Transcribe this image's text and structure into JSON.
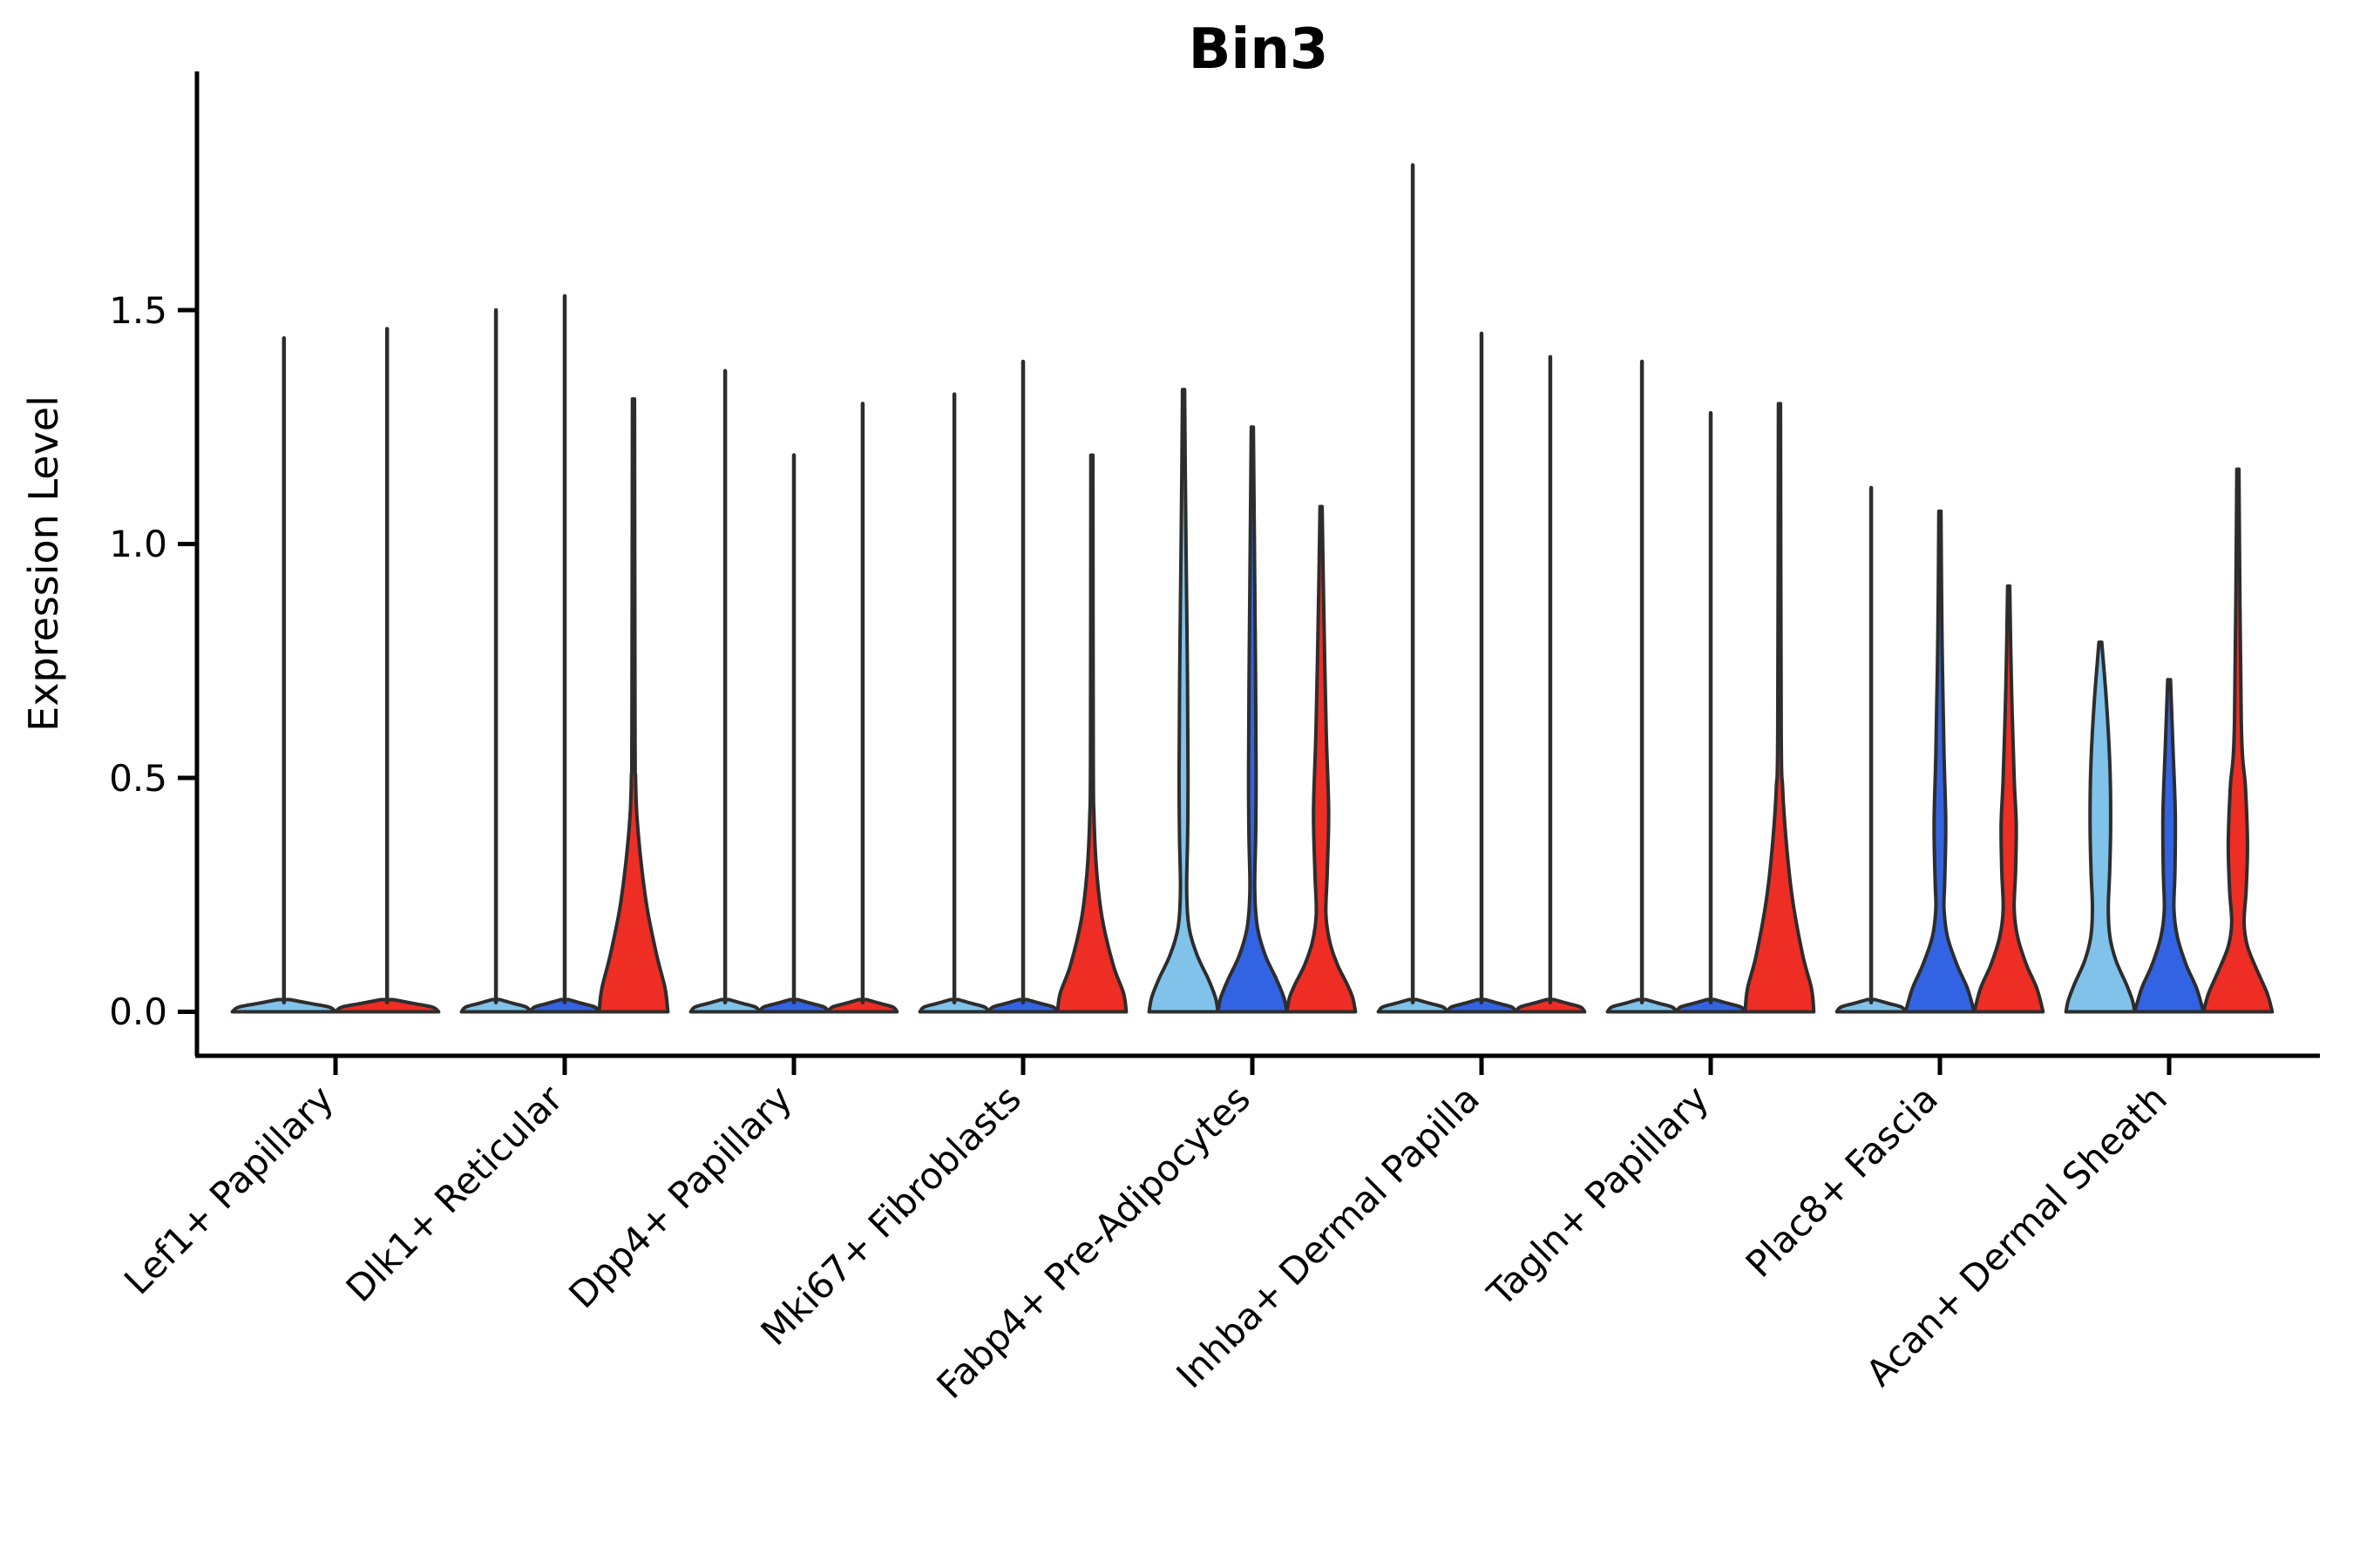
{
  "figure": {
    "title": "Bin3",
    "y_axis_label": "Expression Level"
  },
  "chart_data": {
    "type": "violin",
    "title": "Bin3",
    "ylabel": "Expression Level",
    "xlabel": "",
    "grid": false,
    "legend_position": "none",
    "ylim": [
      -0.09,
      2.0
    ],
    "yticks": [
      0.0,
      0.5,
      1.0,
      1.5
    ],
    "ytick_labels": [
      "0.0",
      "0.5",
      "1.0",
      "1.5"
    ],
    "categories": [
      "Lef1+ Papillary",
      "Dlk1+ Reticular",
      "Dpp4+ Papillary",
      "Mki67+ Fibroblasts",
      "Fabp4+ Pre-Adipocytes",
      "Inhba+ Dermal Papilla",
      "Tagln+ Papillary",
      "Plac8+ Fascia",
      "Acan+ Dermal Sheath"
    ],
    "series_colors": {
      "light": "#80C2E9",
      "dark": "#3263E3",
      "red": "#EE2D24"
    },
    "outline_color": "#2D2D2D",
    "axis_color": "#000000",
    "groups": [
      {
        "category": "Lef1+ Papillary",
        "violins": [
          {
            "split": "light",
            "max": 1.44,
            "shape": "thin"
          },
          {
            "split": "red",
            "max": 1.46,
            "shape": "thin"
          }
        ]
      },
      {
        "category": "Dlk1+ Reticular",
        "violins": [
          {
            "split": "light",
            "max": 1.5,
            "shape": "thin"
          },
          {
            "split": "dark",
            "max": 1.53,
            "shape": "thin"
          },
          {
            "split": "red",
            "max": 1.31,
            "shape": "bulge",
            "profile": [
              [
                1.31,
                0.03
              ],
              [
                0.6,
                0.045
              ],
              [
                0.5,
                0.06
              ],
              [
                0.42,
                0.1
              ],
              [
                0.32,
                0.22
              ],
              [
                0.22,
                0.4
              ],
              [
                0.12,
                0.68
              ],
              [
                0.05,
                0.92
              ],
              [
                0,
                1
              ]
            ]
          }
        ]
      },
      {
        "category": "Dpp4+ Papillary",
        "violins": [
          {
            "split": "light",
            "max": 1.37,
            "shape": "thin"
          },
          {
            "split": "dark",
            "max": 1.19,
            "shape": "thin"
          },
          {
            "split": "red",
            "max": 1.3,
            "shape": "thin"
          }
        ]
      },
      {
        "category": "Mki67+ Fibroblasts",
        "violins": [
          {
            "split": "light",
            "max": 1.32,
            "shape": "thin"
          },
          {
            "split": "dark",
            "max": 1.39,
            "shape": "thin"
          },
          {
            "split": "red",
            "max": 1.19,
            "shape": "bulge",
            "profile": [
              [
                1.19,
                0.03
              ],
              [
                0.55,
                0.04
              ],
              [
                0.42,
                0.06
              ],
              [
                0.3,
                0.14
              ],
              [
                0.2,
                0.3
              ],
              [
                0.1,
                0.62
              ],
              [
                0.04,
                0.92
              ],
              [
                0,
                1
              ]
            ]
          }
        ]
      },
      {
        "category": "Fabp4+ Pre-Adipocytes",
        "violins": [
          {
            "split": "light",
            "max": 1.33,
            "shape": "bulge",
            "profile": [
              [
                1.33,
                0.03
              ],
              [
                1.0,
                0.07
              ],
              [
                0.75,
                0.11
              ],
              [
                0.52,
                0.13
              ],
              [
                0.38,
                0.12
              ],
              [
                0.26,
                0.09
              ],
              [
                0.18,
                0.16
              ],
              [
                0.12,
                0.4
              ],
              [
                0.07,
                0.72
              ],
              [
                0.03,
                0.93
              ],
              [
                0,
                1
              ]
            ]
          },
          {
            "split": "dark",
            "max": 1.25,
            "shape": "bulge",
            "profile": [
              [
                1.25,
                0.03
              ],
              [
                1.0,
                0.06
              ],
              [
                0.75,
                0.09
              ],
              [
                0.52,
                0.11
              ],
              [
                0.38,
                0.1
              ],
              [
                0.26,
                0.07
              ],
              [
                0.18,
                0.15
              ],
              [
                0.12,
                0.38
              ],
              [
                0.07,
                0.7
              ],
              [
                0.03,
                0.92
              ],
              [
                0,
                1
              ]
            ]
          },
          {
            "split": "red",
            "max": 1.08,
            "shape": "bulge",
            "profile": [
              [
                1.08,
                0.03
              ],
              [
                0.85,
                0.08
              ],
              [
                0.6,
                0.15
              ],
              [
                0.43,
                0.22
              ],
              [
                0.3,
                0.18
              ],
              [
                0.21,
                0.14
              ],
              [
                0.15,
                0.25
              ],
              [
                0.1,
                0.48
              ],
              [
                0.06,
                0.75
              ],
              [
                0.03,
                0.92
              ],
              [
                0,
                1
              ]
            ]
          }
        ]
      },
      {
        "category": "Inhba+ Dermal Papilla",
        "violins": [
          {
            "split": "light",
            "max": 1.81,
            "shape": "thin"
          },
          {
            "split": "dark",
            "max": 1.45,
            "shape": "thin"
          },
          {
            "split": "red",
            "max": 1.4,
            "shape": "thin"
          }
        ]
      },
      {
        "category": "Tagln+ Papillary",
        "violins": [
          {
            "split": "light",
            "max": 1.39,
            "shape": "thin"
          },
          {
            "split": "dark",
            "max": 1.28,
            "shape": "thin"
          },
          {
            "split": "red",
            "max": 1.3,
            "shape": "bulge",
            "profile": [
              [
                1.3,
                0.03
              ],
              [
                0.6,
                0.05
              ],
              [
                0.48,
                0.09
              ],
              [
                0.36,
                0.2
              ],
              [
                0.24,
                0.38
              ],
              [
                0.12,
                0.68
              ],
              [
                0.05,
                0.93
              ],
              [
                0,
                1
              ]
            ]
          }
        ]
      },
      {
        "category": "Plac8+ Fascia",
        "violins": [
          {
            "split": "light",
            "max": 1.12,
            "shape": "thin"
          },
          {
            "split": "dark",
            "max": 1.07,
            "shape": "bulge",
            "profile": [
              [
                1.07,
                0.03
              ],
              [
                0.8,
                0.06
              ],
              [
                0.55,
                0.12
              ],
              [
                0.4,
                0.17
              ],
              [
                0.28,
                0.14
              ],
              [
                0.22,
                0.12
              ],
              [
                0.16,
                0.22
              ],
              [
                0.1,
                0.5
              ],
              [
                0.05,
                0.8
              ],
              [
                0,
                1
              ]
            ]
          },
          {
            "split": "red",
            "max": 0.91,
            "shape": "bulge",
            "profile": [
              [
                0.91,
                0.03
              ],
              [
                0.7,
                0.08
              ],
              [
                0.5,
                0.16
              ],
              [
                0.4,
                0.22
              ],
              [
                0.3,
                0.2
              ],
              [
                0.22,
                0.16
              ],
              [
                0.16,
                0.26
              ],
              [
                0.1,
                0.52
              ],
              [
                0.05,
                0.82
              ],
              [
                0,
                1
              ]
            ]
          }
        ]
      },
      {
        "category": "Acan+ Dermal Sheath",
        "violins": [
          {
            "split": "light",
            "max": 0.79,
            "shape": "bulge",
            "profile": [
              [
                0.79,
                0.04
              ],
              [
                0.66,
                0.18
              ],
              [
                0.52,
                0.28
              ],
              [
                0.4,
                0.3
              ],
              [
                0.3,
                0.27
              ],
              [
                0.22,
                0.23
              ],
              [
                0.16,
                0.28
              ],
              [
                0.11,
                0.45
              ],
              [
                0.06,
                0.75
              ],
              [
                0.025,
                0.93
              ],
              [
                0,
                1
              ]
            ]
          },
          {
            "split": "dark",
            "max": 0.71,
            "shape": "bulge",
            "profile": [
              [
                0.71,
                0.04
              ],
              [
                0.55,
                0.12
              ],
              [
                0.42,
                0.18
              ],
              [
                0.3,
                0.17
              ],
              [
                0.22,
                0.14
              ],
              [
                0.16,
                0.24
              ],
              [
                0.1,
                0.5
              ],
              [
                0.05,
                0.8
              ],
              [
                0,
                1
              ]
            ]
          },
          {
            "split": "red",
            "max": 1.16,
            "shape": "bulge",
            "profile": [
              [
                1.16,
                0.03
              ],
              [
                0.62,
                0.1
              ],
              [
                0.48,
                0.22
              ],
              [
                0.36,
                0.28
              ],
              [
                0.26,
                0.24
              ],
              [
                0.19,
                0.18
              ],
              [
                0.14,
                0.28
              ],
              [
                0.09,
                0.55
              ],
              [
                0.04,
                0.85
              ],
              [
                0,
                1
              ]
            ]
          }
        ]
      }
    ]
  }
}
